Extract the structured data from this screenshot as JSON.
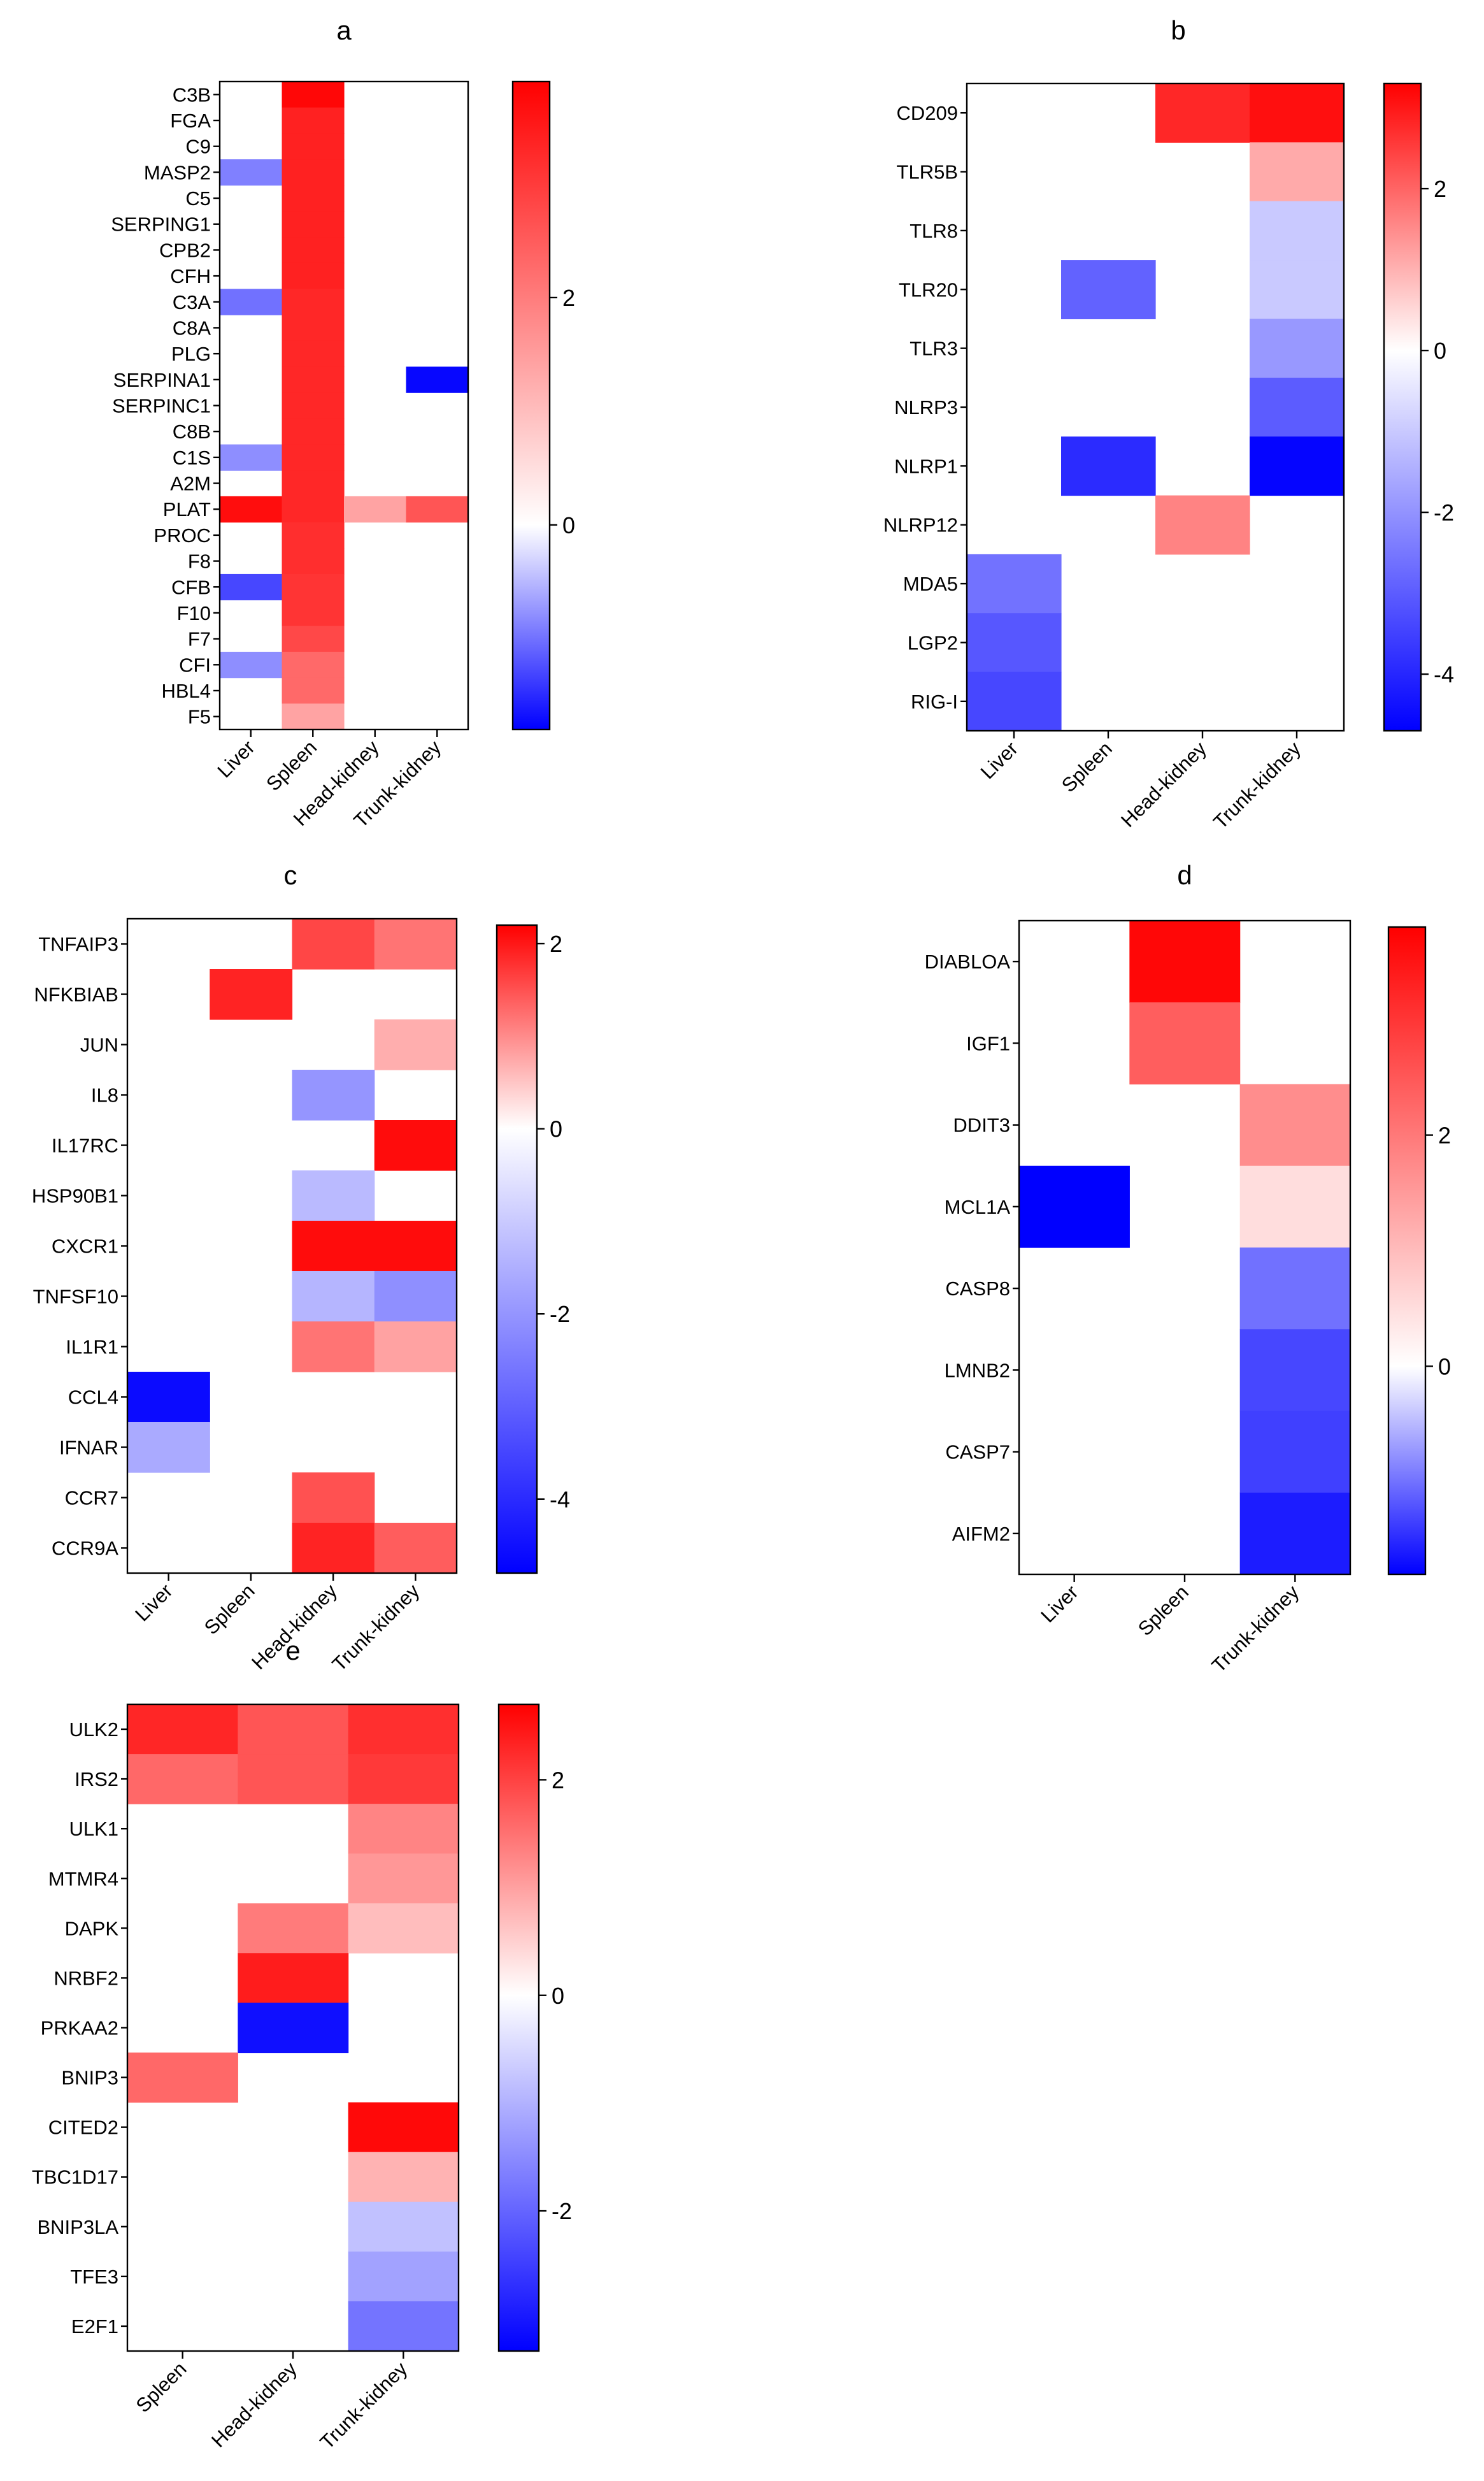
{
  "figure": {
    "colors": {
      "low": "#0000ff",
      "mid": "#ffffff",
      "high": "#ff0000"
    }
  },
  "chart_data": [
    {
      "type": "heatmap",
      "panel": "a",
      "title": "a",
      "columns": [
        "Liver",
        "Spleen",
        "Head-kidney",
        "Trunk-kidney"
      ],
      "rows": [
        "C3B",
        "FGA",
        "C9",
        "MASP2",
        "C5",
        "SERPING1",
        "CPB2",
        "CFH",
        "C3A",
        "C8A",
        "PLG",
        "SERPINA1",
        "SERPINC1",
        "C8B",
        "C1S",
        "A2M",
        "PLAT",
        "PROC",
        "F8",
        "CFB",
        "F10",
        "F7",
        "CFI",
        "HBL4",
        "F5"
      ],
      "values": [
        [
          null,
          3.8,
          null,
          null
        ],
        [
          null,
          3.4,
          null,
          null
        ],
        [
          null,
          3.4,
          null,
          null
        ],
        [
          -0.9,
          3.4,
          null,
          null
        ],
        [
          null,
          3.4,
          null,
          null
        ],
        [
          null,
          3.4,
          null,
          null
        ],
        [
          null,
          3.4,
          null,
          null
        ],
        [
          null,
          3.4,
          null,
          null
        ],
        [
          -1.0,
          3.3,
          null,
          null
        ],
        [
          null,
          3.3,
          null,
          null
        ],
        [
          null,
          3.3,
          null,
          null
        ],
        [
          null,
          3.3,
          null,
          -1.75
        ],
        [
          null,
          3.3,
          null,
          null
        ],
        [
          null,
          3.3,
          null,
          null
        ],
        [
          -0.8,
          3.3,
          null,
          null
        ],
        [
          null,
          3.3,
          null,
          null
        ],
        [
          3.7,
          3.3,
          1.4,
          2.6
        ],
        [
          null,
          3.2,
          null,
          null
        ],
        [
          null,
          3.2,
          null,
          null
        ],
        [
          -1.3,
          3.1,
          null,
          null
        ],
        [
          null,
          3.1,
          null,
          null
        ],
        [
          null,
          2.8,
          null,
          null
        ],
        [
          -0.8,
          2.3,
          null,
          null
        ],
        [
          null,
          2.3,
          null,
          null
        ],
        [
          null,
          1.4,
          null,
          null
        ]
      ],
      "colorbar": {
        "min": -1.8,
        "max": 3.9,
        "ticks": [
          2,
          0
        ],
        "tick_labels": [
          "2",
          "0"
        ]
      }
    },
    {
      "type": "heatmap",
      "panel": "b",
      "title": "b",
      "columns": [
        "Liver",
        "Spleen",
        "Head-kidney",
        "Trunk-kidney"
      ],
      "rows": [
        "CD209",
        "TLR5B",
        "TLR8",
        "TLR20",
        "TLR3",
        "NLRP3",
        "NLRP1",
        "NLRP12",
        "MDA5",
        "LGP2",
        "RIG-I"
      ],
      "values": [
        [
          null,
          null,
          2.8,
          3.1
        ],
        [
          null,
          null,
          null,
          1.1
        ],
        [
          null,
          null,
          null,
          -1.0
        ],
        [
          null,
          -2.9,
          null,
          -1.0
        ],
        [
          null,
          null,
          null,
          -1.9
        ],
        [
          null,
          null,
          null,
          -3.0
        ],
        [
          null,
          -3.9,
          null,
          -4.6
        ],
        [
          null,
          null,
          1.6,
          null
        ],
        [
          -2.6,
          null,
          null,
          null
        ],
        [
          -3.1,
          null,
          null,
          null
        ],
        [
          -3.4,
          null,
          null,
          null
        ]
      ],
      "colorbar": {
        "min": -4.7,
        "max": 3.3,
        "ticks": [
          2,
          0,
          -2,
          -4
        ],
        "tick_labels": [
          "2",
          "0",
          "-2",
          "-4"
        ]
      }
    },
    {
      "type": "heatmap",
      "panel": "c",
      "title": "c",
      "columns": [
        "Liver",
        "Spleen",
        "Head-kidney",
        "Trunk-kidney"
      ],
      "rows": [
        "TNFAIP3",
        "NFKBIAB",
        "JUN",
        "IL8",
        "IL17RC",
        "HSP90B1",
        "CXCR1",
        "TNFSF10",
        "IL1R1",
        "CCL4",
        "IFNAR",
        "CCR7",
        "CCR9A"
      ],
      "values": [
        [
          null,
          null,
          1.6,
          1.2
        ],
        [
          null,
          1.9,
          null,
          null
        ],
        [
          null,
          null,
          null,
          0.7
        ],
        [
          null,
          null,
          -2.0,
          null
        ],
        [
          null,
          null,
          null,
          2.1
        ],
        [
          null,
          null,
          -1.3,
          null
        ],
        [
          null,
          null,
          2.1,
          2.1
        ],
        [
          null,
          null,
          -1.4,
          -2.1
        ],
        [
          null,
          null,
          1.2,
          0.8
        ],
        [
          -4.6,
          null,
          null,
          null
        ],
        [
          -1.6,
          null,
          null,
          null
        ],
        [
          null,
          null,
          1.5,
          null
        ],
        [
          null,
          null,
          1.9,
          1.4
        ]
      ],
      "colorbar": {
        "min": -4.8,
        "max": 2.2,
        "ticks": [
          2,
          0,
          -2,
          -4
        ],
        "tick_labels": [
          "2",
          "0",
          "-2",
          "-4"
        ]
      }
    },
    {
      "type": "heatmap",
      "panel": "d",
      "title": "d",
      "columns": [
        "Liver",
        "Spleen",
        "Trunk-kidney"
      ],
      "rows": [
        "DIABLOA",
        "IGF1",
        "DDIT3",
        "MCL1A",
        "CASP8",
        "LMNB2",
        "CASP7",
        "AIFM2"
      ],
      "values": [
        [
          null,
          3.7,
          null
        ],
        [
          null,
          2.4,
          null
        ],
        [
          null,
          null,
          1.7
        ],
        [
          -1.8,
          null,
          0.5
        ],
        [
          null,
          null,
          -1.0
        ],
        [
          null,
          null,
          -1.3
        ],
        [
          null,
          null,
          -1.35
        ],
        [
          null,
          null,
          -1.6
        ]
      ],
      "colorbar": {
        "min": -1.8,
        "max": 3.8,
        "ticks": [
          2,
          0
        ],
        "tick_labels": [
          "2",
          "0"
        ]
      }
    },
    {
      "type": "heatmap",
      "panel": "e",
      "title": "e",
      "columns": [
        "Spleen",
        "Head-kidney",
        "Trunk-kidney"
      ],
      "rows": [
        "ULK2",
        "IRS2",
        "ULK1",
        "MTMR4",
        "DAPK",
        "NRBF2",
        "PRKAA2",
        "BNIP3",
        "CITED2",
        "TBC1D17",
        "BNIP3LA",
        "TFE3",
        "E2F1"
      ],
      "values": [
        [
          2.3,
          1.8,
          2.2
        ],
        [
          1.6,
          1.8,
          2.1
        ],
        [
          null,
          null,
          1.3
        ],
        [
          null,
          null,
          1.1
        ],
        [
          null,
          1.4,
          0.7
        ],
        [
          null,
          2.4,
          null
        ],
        [
          null,
          -3.1,
          null
        ],
        [
          1.6,
          null,
          null
        ],
        [
          null,
          null,
          2.6
        ],
        [
          null,
          null,
          0.8
        ],
        [
          null,
          null,
          -0.8
        ],
        [
          null,
          null,
          -1.2
        ],
        [
          null,
          null,
          -1.8
        ]
      ],
      "colorbar": {
        "min": -3.3,
        "max": 2.7,
        "ticks": [
          2,
          0,
          -2
        ],
        "tick_labels": [
          "2",
          "0",
          "-2"
        ]
      }
    }
  ]
}
